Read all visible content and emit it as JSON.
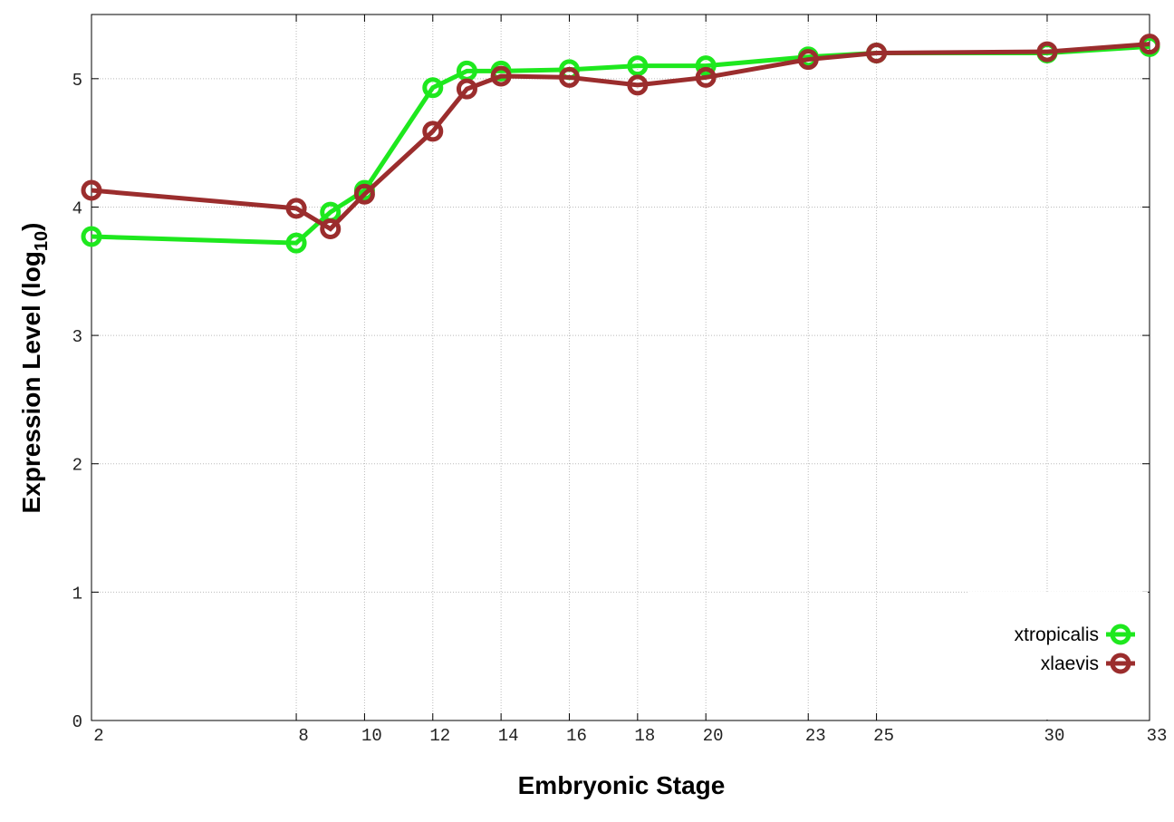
{
  "chart_data": {
    "type": "line",
    "xlabel": "Embryonic Stage",
    "ylabel": [
      "Expression Level (log",
      "10",
      ")"
    ],
    "x": [
      2,
      8,
      9,
      10,
      12,
      13,
      14,
      16,
      18,
      20,
      23,
      25,
      30,
      33
    ],
    "xlim": [
      2,
      33
    ],
    "xticks": [
      2,
      8,
      10,
      12,
      14,
      16,
      18,
      20,
      23,
      25,
      30,
      33
    ],
    "ylim": [
      0,
      5.5
    ],
    "yticks": [
      0,
      1,
      2,
      3,
      4,
      5
    ],
    "grid": true,
    "legend": "lower right",
    "series": [
      {
        "name": "xtropicalis",
        "color": "#1ee81e",
        "values": [
          3.77,
          3.72,
          3.96,
          4.13,
          4.93,
          5.06,
          5.06,
          5.07,
          5.1,
          5.1,
          5.17,
          5.2,
          5.2,
          5.25
        ]
      },
      {
        "name": "xlaevis",
        "color": "#9b2d2d",
        "values": [
          4.13,
          3.99,
          3.83,
          4.1,
          4.59,
          4.92,
          5.02,
          5.01,
          4.95,
          5.01,
          5.15,
          5.2,
          5.21,
          5.27
        ]
      }
    ]
  }
}
